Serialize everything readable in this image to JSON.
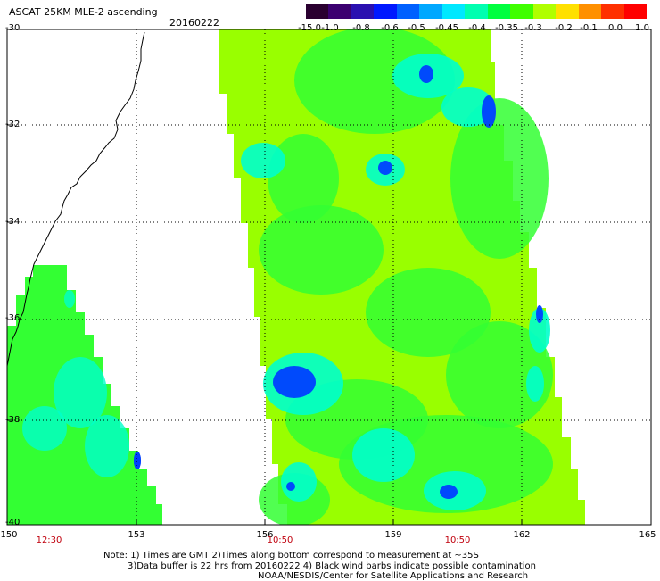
{
  "header": {
    "title": "ASCAT 25KM MLE-2 ascending",
    "date": "20160222"
  },
  "colorbar": {
    "labels": [
      "-15.0",
      "-1.0",
      "-0.8",
      "-0.6",
      "-0.5",
      "-0.45",
      "-0.4",
      "-0.35",
      "-0.3",
      "-0.2",
      "-0.1",
      "0.0",
      "1.0"
    ],
    "colors": [
      "#2a0030",
      "#3b0070",
      "#2a10b0",
      "#0018ff",
      "#0060ff",
      "#00a8ff",
      "#00e8ff",
      "#00ffb0",
      "#00ff40",
      "#40ff00",
      "#b0ff00",
      "#ffe000",
      "#ff9000",
      "#ff3000",
      "#ff0000"
    ]
  },
  "axes": {
    "lat_labels": [
      "-30",
      "-32",
      "-34",
      "-36",
      "-38",
      "-40"
    ],
    "lon_labels": [
      "150",
      "153",
      "156",
      "159",
      "162",
      "165"
    ],
    "time_labels": [
      "12:30",
      "10:50",
      "10:50"
    ]
  },
  "notes": {
    "line1": "Note: 1) Times are GMT 2)Times along bottom correspond to measurement at ~35S",
    "line2": "3)Data buffer is 22 hrs from 20160222 4) Black wind barbs indicate possible contamination",
    "line3": "NOAA/NESDIS/Center for Satellite Applications and Research"
  },
  "colors": {
    "swath_base": "#99ff00",
    "swath_green": "#33ff33",
    "swath_cyan": "#00ffcc",
    "swath_blue": "#0040ff",
    "grid": "#000000",
    "time_label": "#c0000d"
  }
}
